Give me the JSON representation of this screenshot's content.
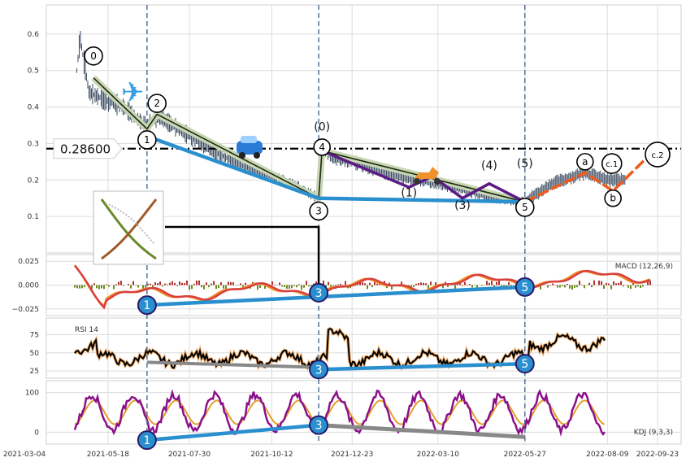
{
  "chart_data": [
    {
      "type": "line",
      "title": "",
      "xlabel": "",
      "ylabel": "",
      "x_ticks": [
        "2021-03-04",
        "2021-05-18",
        "2021-07-30",
        "2021-10-12",
        "2021-12-23",
        "2022-03-10",
        "2022-05-27",
        "2022-08-09",
        "2022-09-23"
      ],
      "ylim": [
        0.0,
        0.68
      ],
      "y_ticks": [
        "0.1",
        "0.2",
        "0.3",
        "0.4",
        "0.5",
        "0.6"
      ],
      "grid": true,
      "price_level": {
        "label": "0.28600",
        "value": 0.286
      },
      "series": [
        {
          "x": [
            "2021-04-20",
            "2021-04-23",
            "2021-05-01",
            "2021-05-15",
            "2021-06-01",
            "2021-06-20",
            "2021-07-05",
            "2021-07-30",
            "2021-08-20",
            "2021-09-15",
            "2021-10-12",
            "2021-11-05",
            "2021-11-23",
            "2021-11-26",
            "2021-12-05",
            "2021-12-23",
            "2022-01-20",
            "2022-02-15",
            "2022-03-10",
            "2022-04-05",
            "2022-05-01",
            "2022-05-27",
            "2022-06-20",
            "2022-07-20",
            "2022-08-09",
            "2022-08-25"
          ],
          "values": [
            0.5,
            0.59,
            0.44,
            0.42,
            0.4,
            0.35,
            0.37,
            0.32,
            0.28,
            0.24,
            0.21,
            0.18,
            0.15,
            0.3,
            0.26,
            0.25,
            0.22,
            0.2,
            0.19,
            0.17,
            0.15,
            0.14,
            0.19,
            0.22,
            0.2,
            0.2
          ]
        }
      ],
      "wave_labels": [
        "0",
        "1",
        "2",
        "3",
        "4",
        "(0)",
        "(1)",
        "(3)",
        "(4)",
        "(5)",
        "5",
        "a",
        "b",
        "c.1",
        "c.2"
      ]
    },
    {
      "type": "line",
      "legend": "MACD (12,26,9)",
      "y_ticks": [
        "0.025",
        "0.000",
        "−0.025"
      ],
      "ylim": [
        -0.032,
        0.032
      ],
      "markers": [
        "1",
        "3",
        "5"
      ]
    },
    {
      "type": "line",
      "legend": "RSI 14",
      "y_ticks": [
        "75",
        "50",
        "25"
      ],
      "ylim": [
        15,
        98
      ],
      "markers": [
        "3",
        "5"
      ]
    },
    {
      "type": "line",
      "legend": "KDJ (9,3,3)",
      "y_ticks": [
        "100",
        "0"
      ],
      "ylim": [
        -30,
        130
      ],
      "markers": [
        "1",
        "3"
      ]
    }
  ],
  "colors": {
    "candle": "#3a4a60",
    "wave_blue": "#2a8fcf",
    "wave_purple": "#5b1a86",
    "wave_orange": "#f05a1a",
    "wave_green": "#c9d6b4",
    "macd_fast": "#f08a20",
    "macd_slow": "#d84040",
    "kdj_j": "#8a108a",
    "divergence_gray": "#888888",
    "vline": "#4a6a90"
  },
  "icons": [
    "airplane-icon",
    "car-icon",
    "scooter-icon",
    "dna-thumbnail"
  ]
}
